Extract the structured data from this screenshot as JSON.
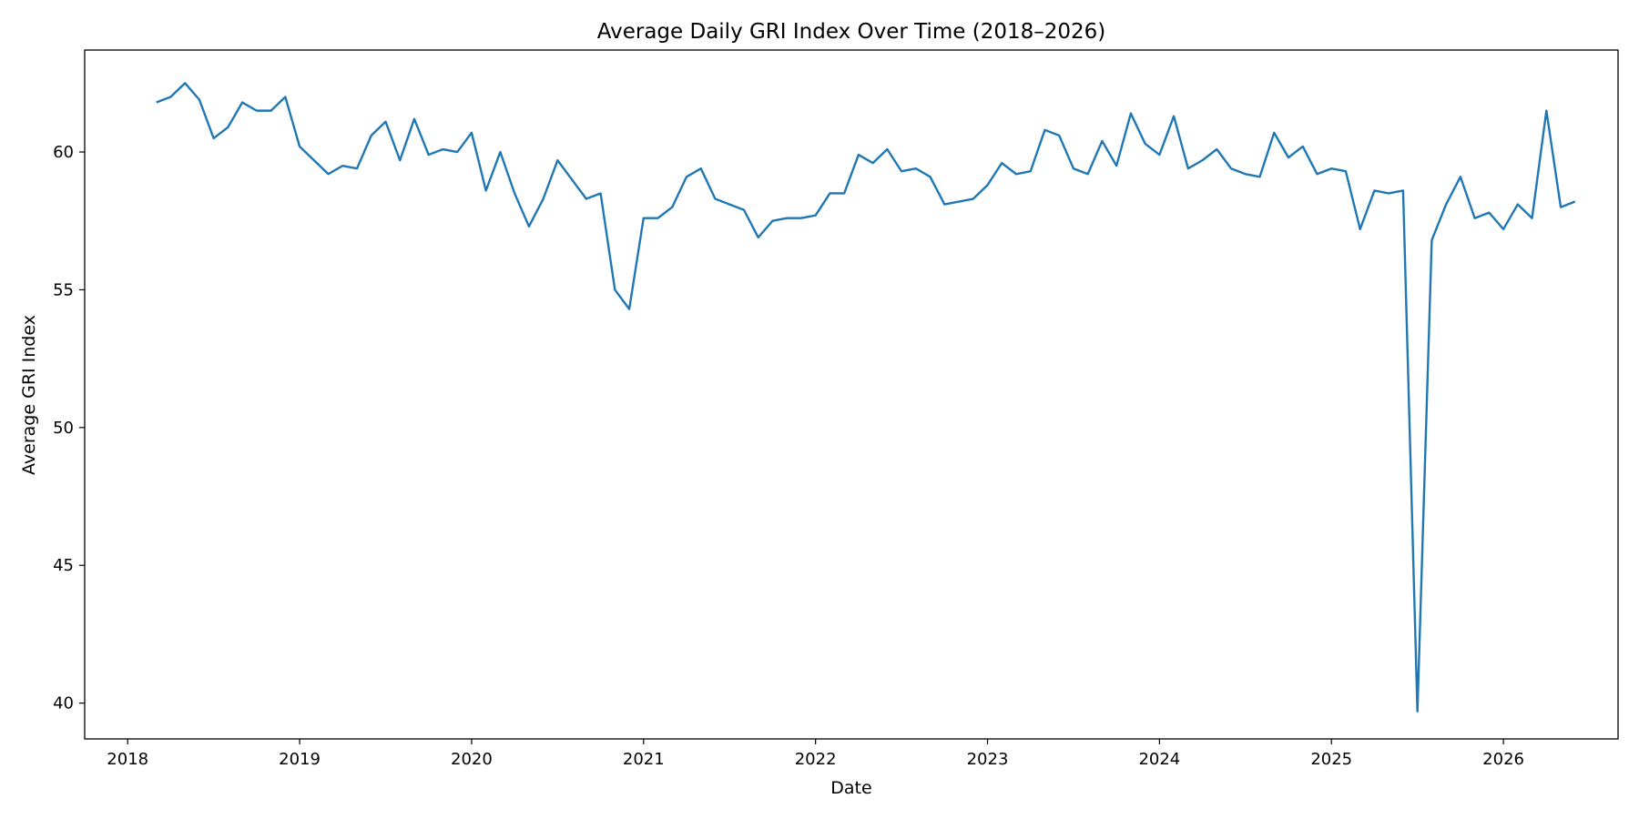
{
  "chart_data": {
    "type": "line",
    "title": "Average Daily GRI Index Over Time (2018–2026)",
    "xlabel": "Date",
    "ylabel": "Average GRI Index",
    "xlim": [
      "2017-10-01",
      "2026-09-01"
    ],
    "ylim": [
      38.7,
      63.7
    ],
    "x_ticks": [
      "2018",
      "2019",
      "2020",
      "2021",
      "2022",
      "2023",
      "2024",
      "2025",
      "2026"
    ],
    "y_ticks": [
      40,
      45,
      50,
      55,
      60
    ],
    "grid": false,
    "legend": "none",
    "color": "#1f77b4",
    "series": [
      {
        "x": [
          "2018-03",
          "2018-04",
          "2018-05",
          "2018-06",
          "2018-07",
          "2018-08",
          "2018-09",
          "2018-10",
          "2018-11",
          "2018-12",
          "2019-01",
          "2019-02",
          "2019-03",
          "2019-04",
          "2019-05",
          "2019-06",
          "2019-07",
          "2019-08",
          "2019-09",
          "2019-10",
          "2019-11",
          "2019-12",
          "2020-01",
          "2020-02",
          "2020-03",
          "2020-04",
          "2020-05",
          "2020-06",
          "2020-07",
          "2020-08",
          "2020-09",
          "2020-10",
          "2020-11",
          "2020-12",
          "2021-01",
          "2021-02",
          "2021-03",
          "2021-04",
          "2021-05",
          "2021-06",
          "2021-07",
          "2021-08",
          "2021-09",
          "2021-10",
          "2021-11",
          "2021-12",
          "2022-01",
          "2022-02",
          "2022-03",
          "2022-04",
          "2022-05",
          "2022-06",
          "2022-07",
          "2022-08",
          "2022-09",
          "2022-10",
          "2022-11",
          "2022-12",
          "2023-01",
          "2023-02",
          "2023-03",
          "2023-04",
          "2023-05",
          "2023-06",
          "2023-07",
          "2023-08",
          "2023-09",
          "2023-10",
          "2023-11",
          "2023-12",
          "2024-01",
          "2024-02",
          "2024-03",
          "2024-04",
          "2024-05",
          "2024-06",
          "2024-07",
          "2024-08",
          "2024-09",
          "2024-10",
          "2024-11",
          "2024-12",
          "2025-01",
          "2025-02",
          "2025-03",
          "2025-04",
          "2025-05",
          "2025-06",
          "2025-07",
          "2025-08",
          "2025-09",
          "2025-10",
          "2025-11",
          "2025-12",
          "2026-01",
          "2026-02",
          "2026-03",
          "2026-04",
          "2026-05",
          "2026-06"
        ],
        "values": [
          61.8,
          62.0,
          62.5,
          61.9,
          60.5,
          60.9,
          61.8,
          61.5,
          61.5,
          62.0,
          60.2,
          59.7,
          59.2,
          59.5,
          59.4,
          60.6,
          61.1,
          59.7,
          61.2,
          59.9,
          60.1,
          60.0,
          60.7,
          58.6,
          60.0,
          58.5,
          57.3,
          58.3,
          59.7,
          59.0,
          58.3,
          58.5,
          55.0,
          54.3,
          57.6,
          57.6,
          58.0,
          59.1,
          59.4,
          58.3,
          58.1,
          57.9,
          56.9,
          57.5,
          57.6,
          57.6,
          57.7,
          58.5,
          58.5,
          59.9,
          59.6,
          60.1,
          59.3,
          59.4,
          59.1,
          58.1,
          58.2,
          58.3,
          58.8,
          59.6,
          59.2,
          59.3,
          60.8,
          60.6,
          59.4,
          59.2,
          60.4,
          59.5,
          61.4,
          60.3,
          59.9,
          61.3,
          59.4,
          59.7,
          60.1,
          59.4,
          59.2,
          59.1,
          60.7,
          59.8,
          60.2,
          59.2,
          59.4,
          59.3,
          57.2,
          58.6,
          58.5,
          58.6,
          39.7,
          56.8,
          58.1,
          59.1,
          57.6,
          57.8,
          57.2,
          58.1,
          57.6,
          61.5,
          58.0,
          58.2
        ]
      }
    ]
  }
}
